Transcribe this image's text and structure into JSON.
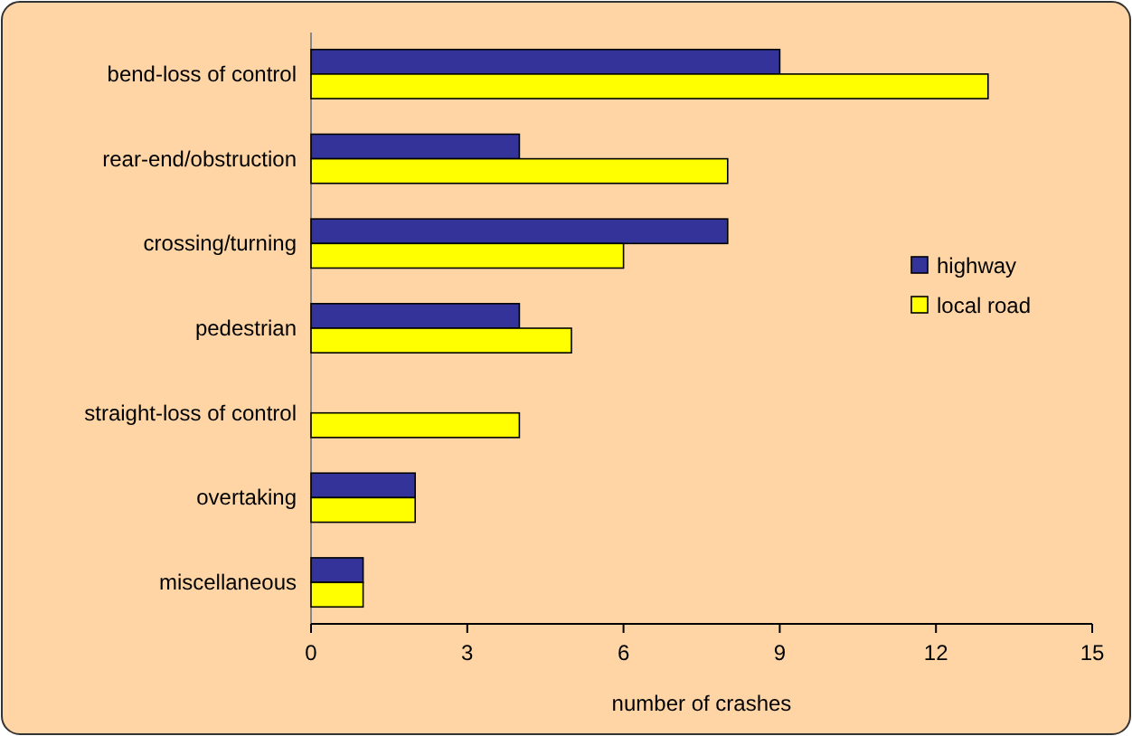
{
  "chart_data": {
    "type": "bar",
    "orientation": "horizontal",
    "xlabel": "number of crashes",
    "categories": [
      "bend-loss of control",
      "rear-end/obstruction",
      "crossing/turning",
      "pedestrian",
      "straight-loss of control",
      "overtaking",
      "miscellaneous"
    ],
    "series": [
      {
        "name": "highway",
        "color": "#333399",
        "values": [
          9,
          4,
          8,
          4,
          0,
          2,
          1
        ]
      },
      {
        "name": "local road",
        "color": "#ffff00",
        "values": [
          13,
          8,
          6,
          5,
          4,
          2,
          1
        ]
      }
    ],
    "xlim": [
      0,
      15
    ],
    "xticks": [
      0,
      3,
      6,
      9,
      12,
      15
    ],
    "grid": false,
    "legend": "right"
  }
}
